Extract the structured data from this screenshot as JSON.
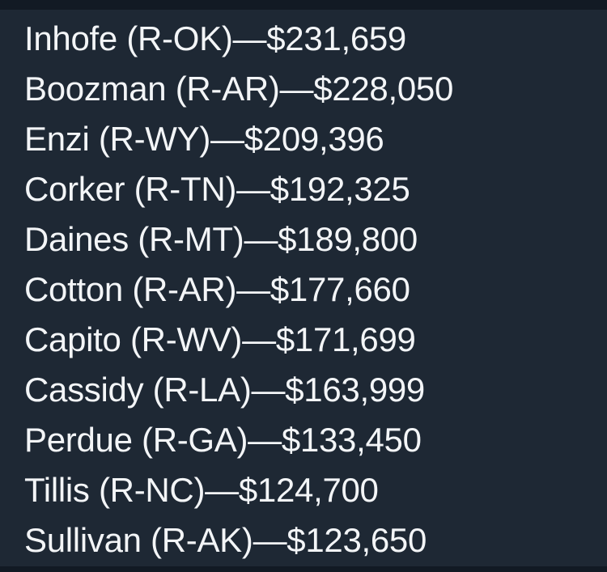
{
  "colors": {
    "background": "#1e2834",
    "edge_strip": "#121a24",
    "text": "#f3f5f7"
  },
  "rows": [
    {
      "name": "Inhofe",
      "party_state": "R-OK",
      "amount": "$231,659",
      "text": "Inhofe (R-OK)—$231,659"
    },
    {
      "name": "Boozman",
      "party_state": "R-AR",
      "amount": "$228,050",
      "text": "Boozman (R-AR)—$228,050"
    },
    {
      "name": "Enzi",
      "party_state": "R-WY",
      "amount": "$209,396",
      "text": "Enzi (R-WY)—$209,396"
    },
    {
      "name": "Corker",
      "party_state": "R-TN",
      "amount": "$192,325",
      "text": "Corker (R-TN)—$192,325"
    },
    {
      "name": "Daines",
      "party_state": "R-MT",
      "amount": "$189,800",
      "text": "Daines (R-MT)—$189,800"
    },
    {
      "name": "Cotton",
      "party_state": "R-AR",
      "amount": "$177,660",
      "text": "Cotton (R-AR)—$177,660"
    },
    {
      "name": "Capito",
      "party_state": "R-WV",
      "amount": "$171,699",
      "text": "Capito (R-WV)—$171,699"
    },
    {
      "name": "Cassidy",
      "party_state": "R-LA",
      "amount": "$163,999",
      "text": "Cassidy (R-LA)—$163,999"
    },
    {
      "name": "Perdue",
      "party_state": "R-GA",
      "amount": "$133,450",
      "text": "Perdue (R-GA)—$133,450"
    },
    {
      "name": "Tillis",
      "party_state": "R-NC",
      "amount": "$124,700",
      "text": "Tillis (R-NC)—$124,700"
    },
    {
      "name": "Sullivan",
      "party_state": "R-AK",
      "amount": "$123,650",
      "text": "Sullivan (R-AK)—$123,650"
    }
  ]
}
